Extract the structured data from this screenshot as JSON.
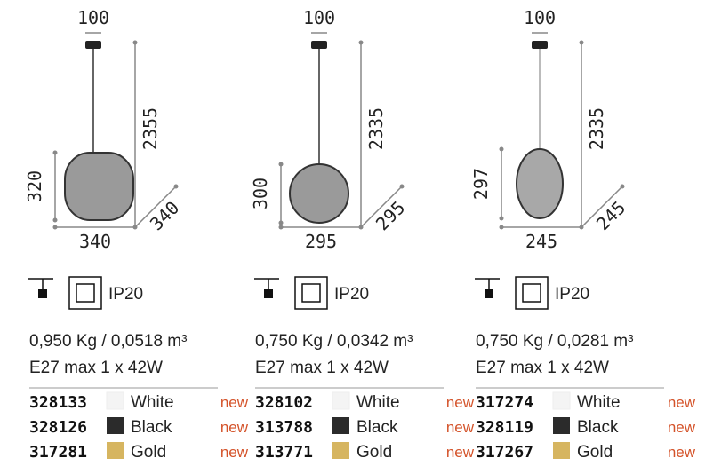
{
  "products": [
    {
      "top_width": "100",
      "height": "2355",
      "lamp_height": "320",
      "width": "340",
      "depth": "340",
      "ip": "IP20",
      "weight": "0,950 Kg / 0,0518 m³",
      "bulb": "E27 max 1 x 42W",
      "variants": [
        {
          "code": "328133",
          "color": "White",
          "swatch": "#f4f4f4",
          "badge": "new"
        },
        {
          "code": "328126",
          "color": "Black",
          "swatch": "#2b2b2b",
          "badge": "new"
        },
        {
          "code": "317281",
          "color": "Gold",
          "swatch": "#d6b560",
          "badge": "new"
        }
      ]
    },
    {
      "top_width": "100",
      "height": "2335",
      "lamp_height": "300",
      "width": "295",
      "depth": "295",
      "ip": "IP20",
      "weight": "0,750 Kg / 0,0342 m³",
      "bulb": "E27 max 1 x 42W",
      "variants": [
        {
          "code": "328102",
          "color": "White",
          "swatch": "#f4f4f4",
          "badge": "new"
        },
        {
          "code": "313788",
          "color": "Black",
          "swatch": "#2b2b2b",
          "badge": "new"
        },
        {
          "code": "313771",
          "color": "Gold",
          "swatch": "#d6b560",
          "badge": "new"
        }
      ]
    },
    {
      "top_width": "100",
      "height": "2335",
      "lamp_height": "297",
      "width": "245",
      "depth": "245",
      "ip": "IP20",
      "weight": "0,750 Kg / 0,0281 m³",
      "bulb": "E27 max 1 x 42W",
      "variants": [
        {
          "code": "317274",
          "color": "White",
          "swatch": "#f4f4f4",
          "badge": "new"
        },
        {
          "code": "328119",
          "color": "Black",
          "swatch": "#2b2b2b",
          "badge": "new"
        },
        {
          "code": "317267",
          "color": "Gold",
          "swatch": "#d6b560",
          "badge": "new"
        }
      ]
    }
  ]
}
